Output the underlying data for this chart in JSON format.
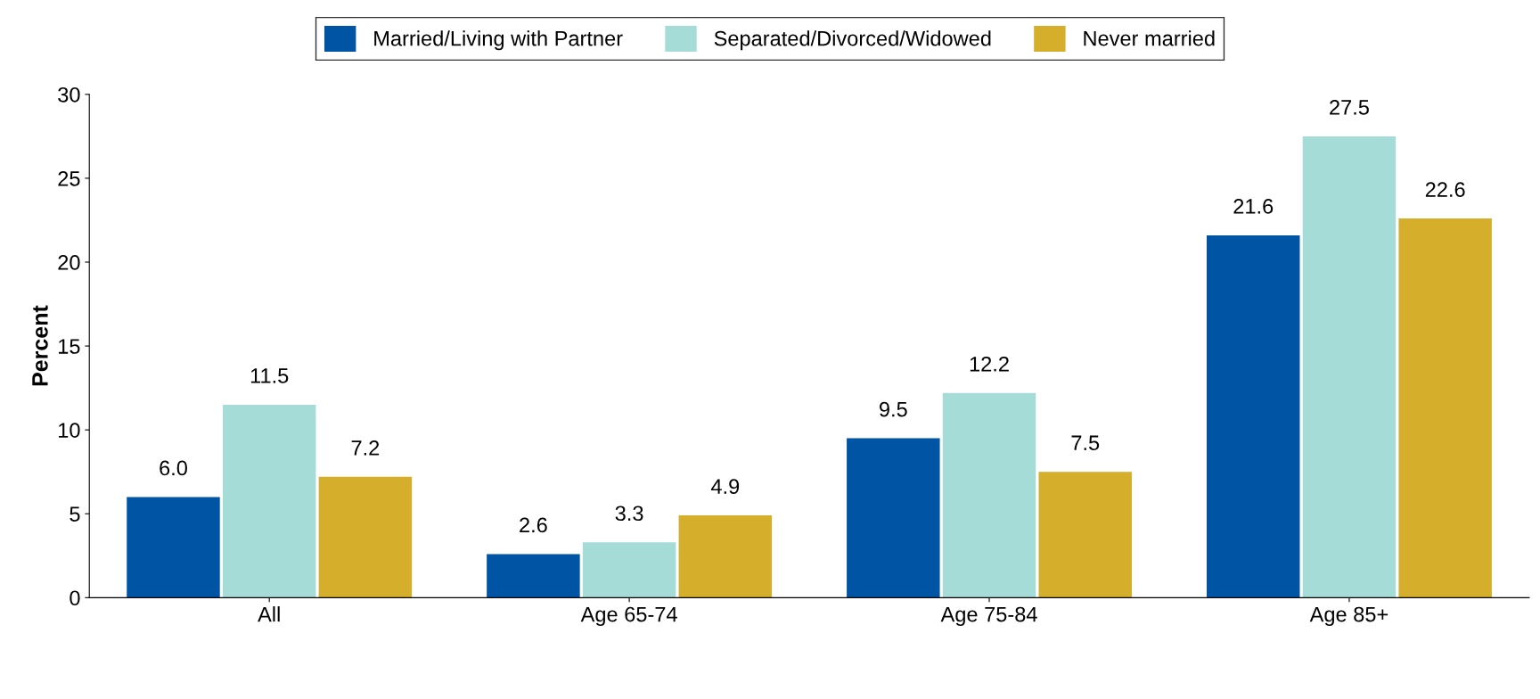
{
  "chart_data": {
    "type": "bar",
    "ylabel": "Percent",
    "categories": [
      "All",
      "Age 65-74",
      "Age 75-84",
      "Age 85+"
    ],
    "series": [
      {
        "name": "Married/Living with Partner",
        "color": "#0054a4",
        "values": [
          6.0,
          2.6,
          9.5,
          21.6
        ],
        "value_labels": [
          "6.0",
          "2.6",
          "9.5",
          "21.6"
        ]
      },
      {
        "name": "Separated/Divorced/Widowed",
        "color": "#a6dcd7",
        "values": [
          11.5,
          3.3,
          12.2,
          27.5
        ],
        "value_labels": [
          "11.5",
          "3.3",
          "12.2",
          "27.5"
        ]
      },
      {
        "name": "Never married",
        "color": "#d5ae2b",
        "values": [
          7.2,
          4.9,
          7.5,
          22.6
        ],
        "value_labels": [
          "7.2",
          "4.9",
          "7.5",
          "22.6"
        ]
      }
    ],
    "ylim": [
      0,
      30
    ],
    "yticks": [
      0,
      5,
      10,
      15,
      20,
      25,
      30
    ],
    "grid": false,
    "legend": "top"
  }
}
